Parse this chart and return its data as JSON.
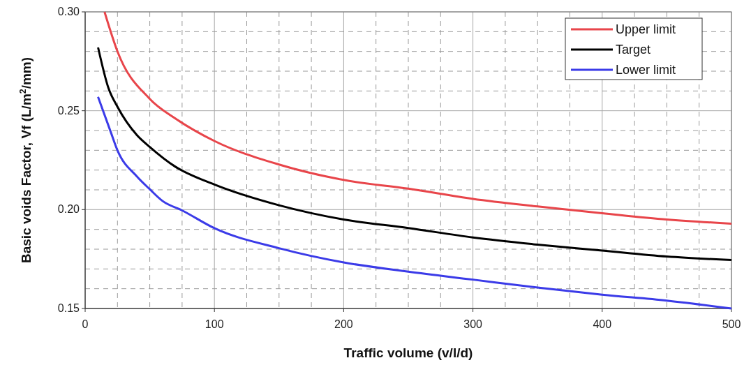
{
  "chart_data": {
    "type": "line",
    "xlabel": "Traffic volume (v/l/d)",
    "ylabel": "Basic voids Factor, Vf (L/m$^{2}$/mm)",
    "xlim": [
      0,
      500
    ],
    "ylim": [
      0.15,
      0.3
    ],
    "xticks": [
      0,
      {
        "value": 25,
        "label": null
      },
      {
        "value": 50,
        "label": null
      },
      {
        "value": 75,
        "label": null
      },
      100,
      {
        "value": 125,
        "label": null
      },
      {
        "value": 150,
        "label": null
      },
      {
        "value": 175,
        "label": null
      },
      200,
      {
        "value": 225,
        "label": null
      },
      {
        "value": 250,
        "label": null
      },
      {
        "value": 275,
        "label": null
      },
      300,
      {
        "value": 325,
        "label": null
      },
      {
        "value": 350,
        "label": null
      },
      {
        "value": 375,
        "label": null
      },
      400,
      {
        "value": 425,
        "label": null
      },
      {
        "value": 450,
        "label": null
      },
      {
        "value": 475,
        "label": null
      },
      500
    ],
    "yticks": [
      {
        "value": 0.15,
        "label": "0.15"
      },
      {
        "value": 0.16,
        "label": null
      },
      {
        "value": 0.17,
        "label": null
      },
      {
        "value": 0.18,
        "label": null
      },
      {
        "value": 0.19,
        "label": null
      },
      {
        "value": 0.2,
        "label": "0.20"
      },
      {
        "value": 0.21,
        "label": null
      },
      {
        "value": 0.22,
        "label": null
      },
      {
        "value": 0.23,
        "label": null
      },
      {
        "value": 0.24,
        "label": null
      },
      {
        "value": 0.25,
        "label": "0.25"
      },
      {
        "value": 0.26,
        "label": null
      },
      {
        "value": 0.27,
        "label": null
      },
      {
        "value": 0.28,
        "label": null
      },
      {
        "value": 0.29,
        "label": null
      },
      {
        "value": 0.3,
        "label": "0.30"
      }
    ],
    "grid": true,
    "legend": "top right",
    "marker": "none",
    "line_style": "solid",
    "series": [
      {
        "name": "Upper limit",
        "color": "#e8454a",
        "x": [
          15,
          25,
          50,
          70,
          100,
          150,
          200,
          250,
          300,
          350,
          400,
          450,
          500
        ],
        "values": [
          0.3,
          0.28,
          0.256,
          0.246,
          0.2347,
          0.2228,
          0.215,
          0.2106,
          0.2054,
          0.2016,
          0.1982,
          0.195,
          0.1929
        ]
      },
      {
        "name": "Target",
        "color": "#000000",
        "x": [
          10,
          18,
          25,
          40,
          50,
          70,
          100,
          150,
          200,
          250,
          300,
          350,
          400,
          450,
          500
        ],
        "values": [
          0.282,
          0.2615,
          0.252,
          0.2377,
          0.2317,
          0.2216,
          0.2127,
          0.2022,
          0.195,
          0.1907,
          0.1859,
          0.1823,
          0.1793,
          0.1763,
          0.1745
        ]
      },
      {
        "name": "Lower limit",
        "color": "#3b3be8",
        "x": [
          10,
          20,
          25,
          40,
          50,
          60,
          75,
          100,
          150,
          200,
          250,
          300,
          350,
          400,
          450,
          500
        ],
        "values": [
          0.257,
          0.2389,
          0.23,
          0.2168,
          0.2103,
          0.2043,
          0.1996,
          0.1906,
          0.1805,
          0.1733,
          0.1686,
          0.1646,
          0.1606,
          0.157,
          0.154,
          0.15
        ]
      }
    ]
  }
}
